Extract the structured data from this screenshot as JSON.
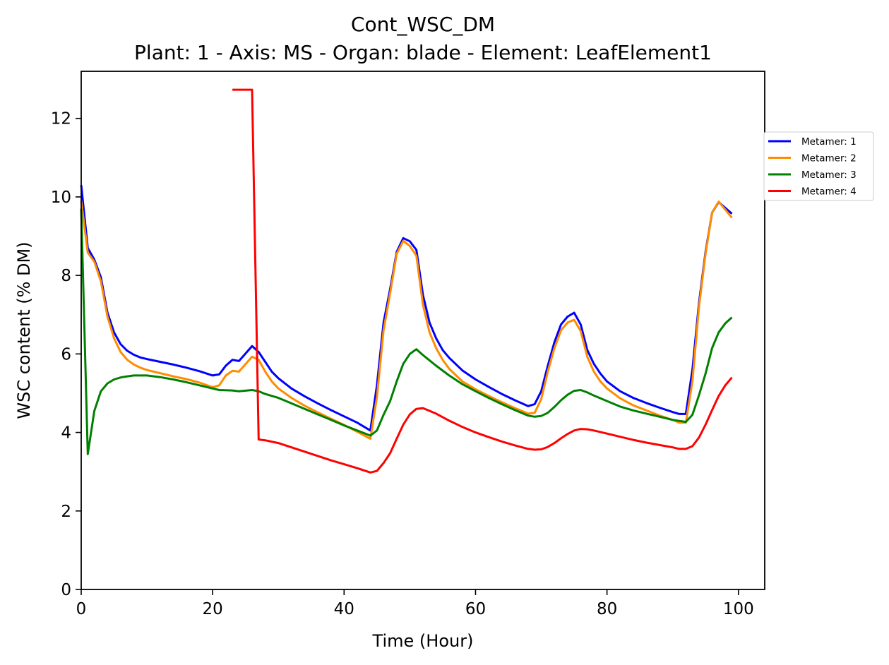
{
  "chart_data": {
    "type": "line",
    "title": "Cont_WSC_DM",
    "subtitle": "Plant: 1 - Axis: MS - Organ: blade - Element: LeafElement1",
    "xlabel": "Time (Hour)",
    "ylabel": "WSC content (% DM)",
    "xlim": [
      0,
      104
    ],
    "ylim": [
      0,
      13.2
    ],
    "xticks": [
      0,
      20,
      40,
      60,
      80,
      100
    ],
    "yticks": [
      0,
      2,
      4,
      6,
      8,
      10,
      12
    ],
    "grid": false,
    "legend_position": "right, outside top",
    "series": [
      {
        "name": "Metamer: 1",
        "color": "#0000ff",
        "points": [
          [
            0,
            10.3
          ],
          [
            1,
            8.7
          ],
          [
            2,
            8.4
          ],
          [
            3,
            7.95
          ],
          [
            4,
            7.05
          ],
          [
            5,
            6.55
          ],
          [
            6,
            6.25
          ],
          [
            7,
            6.08
          ],
          [
            8,
            5.98
          ],
          [
            9,
            5.91
          ],
          [
            10,
            5.87
          ],
          [
            12,
            5.8
          ],
          [
            14,
            5.73
          ],
          [
            16,
            5.65
          ],
          [
            18,
            5.56
          ],
          [
            20,
            5.45
          ],
          [
            21,
            5.48
          ],
          [
            22,
            5.7
          ],
          [
            23,
            5.85
          ],
          [
            24,
            5.82
          ],
          [
            26,
            6.2
          ],
          [
            27,
            6.05
          ],
          [
            28,
            5.8
          ],
          [
            29,
            5.55
          ],
          [
            30,
            5.38
          ],
          [
            32,
            5.12
          ],
          [
            34,
            4.92
          ],
          [
            36,
            4.74
          ],
          [
            38,
            4.57
          ],
          [
            40,
            4.41
          ],
          [
            42,
            4.25
          ],
          [
            44,
            4.05
          ],
          [
            45,
            5.2
          ],
          [
            46,
            6.8
          ],
          [
            47,
            7.65
          ],
          [
            48,
            8.6
          ],
          [
            49,
            8.95
          ],
          [
            50,
            8.87
          ],
          [
            51,
            8.65
          ],
          [
            52,
            7.5
          ],
          [
            53,
            6.8
          ],
          [
            54,
            6.4
          ],
          [
            55,
            6.1
          ],
          [
            56,
            5.9
          ],
          [
            58,
            5.58
          ],
          [
            60,
            5.35
          ],
          [
            62,
            5.16
          ],
          [
            64,
            4.98
          ],
          [
            66,
            4.82
          ],
          [
            68,
            4.67
          ],
          [
            69,
            4.72
          ],
          [
            70,
            5.05
          ],
          [
            71,
            5.7
          ],
          [
            72,
            6.3
          ],
          [
            73,
            6.75
          ],
          [
            74,
            6.95
          ],
          [
            75,
            7.05
          ],
          [
            76,
            6.75
          ],
          [
            77,
            6.1
          ],
          [
            78,
            5.75
          ],
          [
            79,
            5.5
          ],
          [
            80,
            5.3
          ],
          [
            82,
            5.05
          ],
          [
            84,
            4.88
          ],
          [
            86,
            4.75
          ],
          [
            88,
            4.63
          ],
          [
            90,
            4.52
          ],
          [
            91,
            4.47
          ],
          [
            92,
            4.47
          ],
          [
            93,
            5.6
          ],
          [
            94,
            7.3
          ],
          [
            95,
            8.6
          ],
          [
            96,
            9.6
          ],
          [
            97,
            9.87
          ],
          [
            99,
            9.57
          ]
        ]
      },
      {
        "name": "Metamer: 2",
        "color": "#ff8c00",
        "points": [
          [
            0,
            9.9
          ],
          [
            1,
            8.58
          ],
          [
            2,
            8.35
          ],
          [
            3,
            7.85
          ],
          [
            4,
            6.95
          ],
          [
            5,
            6.4
          ],
          [
            6,
            6.05
          ],
          [
            7,
            5.85
          ],
          [
            8,
            5.73
          ],
          [
            9,
            5.65
          ],
          [
            10,
            5.59
          ],
          [
            12,
            5.51
          ],
          [
            14,
            5.43
          ],
          [
            16,
            5.36
          ],
          [
            18,
            5.27
          ],
          [
            20,
            5.15
          ],
          [
            21,
            5.2
          ],
          [
            22,
            5.45
          ],
          [
            23,
            5.57
          ],
          [
            24,
            5.55
          ],
          [
            26,
            5.93
          ],
          [
            27,
            5.85
          ],
          [
            28,
            5.55
          ],
          [
            29,
            5.3
          ],
          [
            30,
            5.12
          ],
          [
            32,
            4.88
          ],
          [
            34,
            4.68
          ],
          [
            36,
            4.51
          ],
          [
            38,
            4.35
          ],
          [
            40,
            4.19
          ],
          [
            42,
            4.02
          ],
          [
            44,
            3.84
          ],
          [
            45,
            4.9
          ],
          [
            46,
            6.6
          ],
          [
            47,
            7.55
          ],
          [
            48,
            8.55
          ],
          [
            49,
            8.88
          ],
          [
            50,
            8.75
          ],
          [
            51,
            8.5
          ],
          [
            52,
            7.25
          ],
          [
            53,
            6.55
          ],
          [
            54,
            6.15
          ],
          [
            55,
            5.85
          ],
          [
            56,
            5.62
          ],
          [
            58,
            5.3
          ],
          [
            60,
            5.1
          ],
          [
            62,
            4.93
          ],
          [
            64,
            4.77
          ],
          [
            66,
            4.62
          ],
          [
            68,
            4.48
          ],
          [
            69,
            4.5
          ],
          [
            70,
            4.85
          ],
          [
            71,
            5.55
          ],
          [
            72,
            6.15
          ],
          [
            73,
            6.6
          ],
          [
            74,
            6.8
          ],
          [
            75,
            6.87
          ],
          [
            76,
            6.58
          ],
          [
            77,
            5.93
          ],
          [
            78,
            5.55
          ],
          [
            79,
            5.3
          ],
          [
            80,
            5.12
          ],
          [
            82,
            4.87
          ],
          [
            84,
            4.69
          ],
          [
            86,
            4.56
          ],
          [
            88,
            4.43
          ],
          [
            90,
            4.32
          ],
          [
            91,
            4.25
          ],
          [
            92,
            4.25
          ],
          [
            93,
            5.3
          ],
          [
            94,
            7.2
          ],
          [
            95,
            8.55
          ],
          [
            96,
            9.6
          ],
          [
            97,
            9.88
          ],
          [
            99,
            9.47
          ]
        ]
      },
      {
        "name": "Metamer: 3",
        "color": "#008000",
        "points": [
          [
            0,
            9.7
          ],
          [
            1,
            3.45
          ],
          [
            2,
            4.55
          ],
          [
            3,
            5.05
          ],
          [
            4,
            5.25
          ],
          [
            5,
            5.35
          ],
          [
            6,
            5.4
          ],
          [
            7,
            5.43
          ],
          [
            8,
            5.45
          ],
          [
            10,
            5.45
          ],
          [
            12,
            5.41
          ],
          [
            14,
            5.35
          ],
          [
            16,
            5.28
          ],
          [
            18,
            5.2
          ],
          [
            20,
            5.12
          ],
          [
            21,
            5.08
          ],
          [
            23,
            5.07
          ],
          [
            24,
            5.05
          ],
          [
            26,
            5.08
          ],
          [
            27,
            5.05
          ],
          [
            28,
            4.98
          ],
          [
            30,
            4.88
          ],
          [
            32,
            4.74
          ],
          [
            34,
            4.6
          ],
          [
            36,
            4.46
          ],
          [
            38,
            4.32
          ],
          [
            40,
            4.18
          ],
          [
            42,
            4.05
          ],
          [
            44,
            3.92
          ],
          [
            45,
            4.05
          ],
          [
            46,
            4.45
          ],
          [
            47,
            4.8
          ],
          [
            48,
            5.3
          ],
          [
            49,
            5.75
          ],
          [
            50,
            6.0
          ],
          [
            51,
            6.12
          ],
          [
            52,
            5.97
          ],
          [
            54,
            5.7
          ],
          [
            56,
            5.45
          ],
          [
            58,
            5.23
          ],
          [
            60,
            5.05
          ],
          [
            62,
            4.88
          ],
          [
            64,
            4.72
          ],
          [
            66,
            4.57
          ],
          [
            68,
            4.43
          ],
          [
            69,
            4.4
          ],
          [
            70,
            4.42
          ],
          [
            71,
            4.5
          ],
          [
            72,
            4.65
          ],
          [
            73,
            4.82
          ],
          [
            74,
            4.96
          ],
          [
            75,
            5.06
          ],
          [
            76,
            5.08
          ],
          [
            77,
            5.02
          ],
          [
            78,
            4.94
          ],
          [
            80,
            4.8
          ],
          [
            82,
            4.66
          ],
          [
            84,
            4.56
          ],
          [
            86,
            4.48
          ],
          [
            88,
            4.4
          ],
          [
            90,
            4.32
          ],
          [
            92,
            4.27
          ],
          [
            93,
            4.45
          ],
          [
            94,
            4.95
          ],
          [
            95,
            5.5
          ],
          [
            96,
            6.15
          ],
          [
            97,
            6.55
          ],
          [
            98,
            6.78
          ],
          [
            99,
            6.93
          ]
        ]
      },
      {
        "name": "Metamer: 4",
        "color": "#ff0000",
        "points": [
          [
            23,
            12.73
          ],
          [
            26,
            12.73
          ],
          [
            27,
            3.82
          ],
          [
            28,
            3.8
          ],
          [
            30,
            3.73
          ],
          [
            32,
            3.62
          ],
          [
            34,
            3.51
          ],
          [
            36,
            3.4
          ],
          [
            38,
            3.29
          ],
          [
            40,
            3.19
          ],
          [
            42,
            3.09
          ],
          [
            44,
            2.98
          ],
          [
            45,
            3.02
          ],
          [
            46,
            3.22
          ],
          [
            47,
            3.47
          ],
          [
            48,
            3.84
          ],
          [
            49,
            4.2
          ],
          [
            50,
            4.46
          ],
          [
            51,
            4.6
          ],
          [
            52,
            4.62
          ],
          [
            54,
            4.48
          ],
          [
            56,
            4.3
          ],
          [
            58,
            4.14
          ],
          [
            60,
            4.0
          ],
          [
            62,
            3.88
          ],
          [
            64,
            3.77
          ],
          [
            66,
            3.67
          ],
          [
            68,
            3.58
          ],
          [
            69,
            3.56
          ],
          [
            70,
            3.57
          ],
          [
            71,
            3.63
          ],
          [
            72,
            3.73
          ],
          [
            73,
            3.85
          ],
          [
            74,
            3.96
          ],
          [
            75,
            4.05
          ],
          [
            76,
            4.09
          ],
          [
            77,
            4.08
          ],
          [
            78,
            4.05
          ],
          [
            80,
            3.97
          ],
          [
            82,
            3.89
          ],
          [
            84,
            3.81
          ],
          [
            86,
            3.74
          ],
          [
            88,
            3.68
          ],
          [
            90,
            3.62
          ],
          [
            91,
            3.58
          ],
          [
            92,
            3.58
          ],
          [
            93,
            3.65
          ],
          [
            94,
            3.87
          ],
          [
            95,
            4.2
          ],
          [
            96,
            4.57
          ],
          [
            97,
            4.93
          ],
          [
            98,
            5.2
          ],
          [
            99,
            5.4
          ]
        ]
      }
    ]
  }
}
